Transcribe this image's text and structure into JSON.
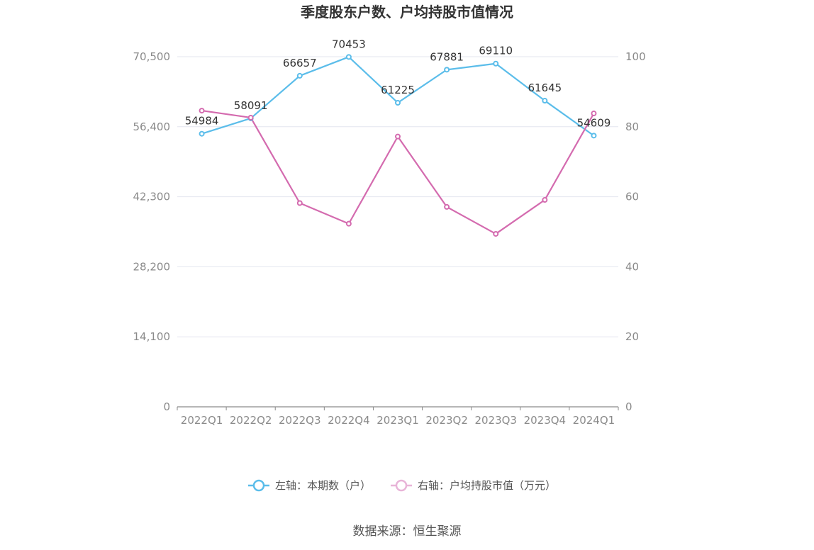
{
  "chart_data": {
    "type": "line",
    "title": "季度股东户数、户均持股市值情况",
    "categories": [
      "2022Q1",
      "2022Q2",
      "2022Q3",
      "2022Q4",
      "2023Q1",
      "2023Q2",
      "2023Q3",
      "2023Q4",
      "2024Q1"
    ],
    "series": [
      {
        "name": "左轴：本期数（户）",
        "axis": "left",
        "color": "#5bbdea",
        "values": [
          54984,
          58091,
          66657,
          70453,
          61225,
          67881,
          69110,
          61645,
          54609
        ],
        "data_labels": [
          "54984",
          "58091",
          "66657",
          "70453",
          "61225",
          "67881",
          "69110",
          "61645",
          "54609"
        ]
      },
      {
        "name": "右轴：户均持股市值（万元）",
        "axis": "right",
        "color": "#d46baf",
        "legend_color": "#e8b4d8",
        "values": [
          84.6,
          82.6,
          58.2,
          52.3,
          77.2,
          57.1,
          49.4,
          59.1,
          83.8
        ]
      }
    ],
    "left_axis": {
      "ylim": [
        0,
        70500
      ],
      "ticks": [
        0,
        14100,
        28200,
        42300,
        56400,
        70500
      ],
      "tick_labels": [
        "0",
        "14,100",
        "28,200",
        "42,300",
        "56,400",
        "70,500"
      ]
    },
    "right_axis": {
      "ylim": [
        0,
        100
      ],
      "ticks": [
        0,
        20,
        40,
        60,
        80,
        100
      ],
      "tick_labels": [
        "0",
        "20",
        "40",
        "60",
        "80",
        "100"
      ]
    },
    "grid": true,
    "legend_position": "bottom"
  },
  "source": "数据来源：恒生聚源"
}
